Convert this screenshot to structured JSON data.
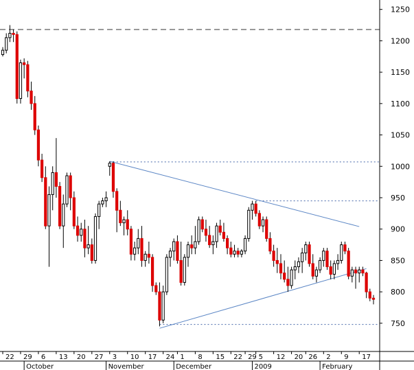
{
  "chart_data": {
    "type": "candlestick",
    "title": "",
    "xlabel": "",
    "ylabel": "",
    "ylim": [
      705,
      1265
    ],
    "y_ticks": [
      750,
      800,
      850,
      900,
      950,
      1000,
      1050,
      1100,
      1150,
      1200,
      1250
    ],
    "grid": false,
    "y_axis_position": "right",
    "colors": {
      "up": "#ffffff",
      "down": "#dd0000",
      "outline": "#000000",
      "trend": "#5b86c5",
      "guide": "#4466aa",
      "axis": "#000000"
    },
    "day_ticks": [
      {
        "label": "22",
        "i": 0
      },
      {
        "label": "29",
        "i": 5
      },
      {
        "label": "6",
        "i": 10
      },
      {
        "label": "13",
        "i": 15
      },
      {
        "label": "20",
        "i": 20
      },
      {
        "label": "27",
        "i": 25
      },
      {
        "label": "3",
        "i": 30
      },
      {
        "label": "10",
        "i": 35
      },
      {
        "label": "17",
        "i": 40
      },
      {
        "label": "24",
        "i": 45
      },
      {
        "label": "1",
        "i": 49
      },
      {
        "label": "8",
        "i": 54
      },
      {
        "label": "15",
        "i": 59
      },
      {
        "label": "22",
        "i": 64
      },
      {
        "label": "29",
        "i": 68
      },
      {
        "label": "5",
        "i": 71
      },
      {
        "label": "12",
        "i": 76
      },
      {
        "label": "20",
        "i": 81
      },
      {
        "label": "26",
        "i": 85
      },
      {
        "label": "2",
        "i": 90
      },
      {
        "label": "9",
        "i": 95
      },
      {
        "label": "17",
        "i": 100
      }
    ],
    "month_ticks": [
      {
        "label": "October",
        "i": 6
      },
      {
        "label": "November",
        "i": 29
      },
      {
        "label": "December",
        "i": 48
      },
      {
        "label": "2009",
        "i": 70
      },
      {
        "label": "February",
        "i": 89
      }
    ],
    "candles": [
      [
        1178,
        1190,
        1175,
        1185
      ],
      [
        1185,
        1212,
        1180,
        1205
      ],
      [
        1205,
        1225,
        1198,
        1212
      ],
      [
        1212,
        1218,
        1198,
        1210
      ],
      [
        1210,
        1215,
        1100,
        1108
      ],
      [
        1108,
        1170,
        1100,
        1165
      ],
      [
        1165,
        1172,
        1140,
        1162
      ],
      [
        1162,
        1168,
        1110,
        1120
      ],
      [
        1120,
        1135,
        1090,
        1100
      ],
      [
        1100,
        1112,
        1050,
        1058
      ],
      [
        1058,
        1065,
        1000,
        1010
      ],
      [
        1010,
        1020,
        975,
        982
      ],
      [
        982,
        1000,
        900,
        905
      ],
      [
        905,
        968,
        840,
        955
      ],
      [
        955,
        1000,
        930,
        990
      ],
      [
        990,
        1045,
        950,
        968
      ],
      [
        968,
        975,
        900,
        905
      ],
      [
        905,
        955,
        870,
        940
      ],
      [
        940,
        990,
        935,
        985
      ],
      [
        985,
        990,
        930,
        950
      ],
      [
        950,
        960,
        900,
        905
      ],
      [
        905,
        920,
        880,
        890
      ],
      [
        890,
        910,
        880,
        900
      ],
      [
        900,
        915,
        855,
        870
      ],
      [
        870,
        905,
        860,
        875
      ],
      [
        875,
        885,
        845,
        850
      ],
      [
        850,
        925,
        845,
        920
      ],
      [
        920,
        945,
        900,
        940
      ],
      [
        940,
        950,
        935,
        945
      ],
      [
        945,
        960,
        935,
        950
      ],
      [
        1000,
        1008,
        985,
        1005
      ],
      [
        1005,
        1008,
        950,
        960
      ],
      [
        960,
        965,
        895,
        930
      ],
      [
        930,
        945,
        905,
        910
      ],
      [
        910,
        920,
        890,
        915
      ],
      [
        915,
        930,
        890,
        900
      ],
      [
        900,
        905,
        850,
        860
      ],
      [
        860,
        880,
        850,
        870
      ],
      [
        870,
        900,
        860,
        885
      ],
      [
        885,
        905,
        840,
        850
      ],
      [
        850,
        865,
        840,
        860
      ],
      [
        860,
        880,
        845,
        855
      ],
      [
        855,
        860,
        800,
        810
      ],
      [
        810,
        815,
        795,
        800
      ],
      [
        800,
        815,
        745,
        755
      ],
      [
        755,
        810,
        750,
        800
      ],
      [
        800,
        860,
        795,
        855
      ],
      [
        855,
        870,
        840,
        865
      ],
      [
        865,
        885,
        850,
        880
      ],
      [
        880,
        890,
        845,
        850
      ],
      [
        850,
        880,
        810,
        815
      ],
      [
        815,
        860,
        810,
        855
      ],
      [
        855,
        880,
        840,
        875
      ],
      [
        875,
        890,
        860,
        870
      ],
      [
        870,
        905,
        860,
        880
      ],
      [
        880,
        920,
        875,
        915
      ],
      [
        915,
        920,
        895,
        900
      ],
      [
        900,
        915,
        880,
        890
      ],
      [
        890,
        905,
        870,
        875
      ],
      [
        875,
        890,
        860,
        880
      ],
      [
        880,
        910,
        870,
        905
      ],
      [
        905,
        915,
        890,
        895
      ],
      [
        895,
        910,
        880,
        885
      ],
      [
        885,
        890,
        860,
        870
      ],
      [
        870,
        880,
        855,
        860
      ],
      [
        860,
        875,
        855,
        865
      ],
      [
        865,
        870,
        855,
        860
      ],
      [
        860,
        868,
        855,
        865
      ],
      [
        865,
        890,
        860,
        885
      ],
      [
        885,
        935,
        880,
        930
      ],
      [
        930,
        945,
        915,
        940
      ],
      [
        940,
        945,
        920,
        925
      ],
      [
        925,
        930,
        900,
        905
      ],
      [
        905,
        920,
        895,
        915
      ],
      [
        915,
        920,
        880,
        885
      ],
      [
        885,
        895,
        860,
        865
      ],
      [
        865,
        875,
        840,
        850
      ],
      [
        850,
        870,
        830,
        845
      ],
      [
        845,
        860,
        820,
        830
      ],
      [
        830,
        850,
        815,
        820
      ],
      [
        820,
        840,
        800,
        810
      ],
      [
        810,
        840,
        805,
        835
      ],
      [
        835,
        850,
        820,
        840
      ],
      [
        840,
        855,
        830,
        848
      ],
      [
        848,
        870,
        830,
        862
      ],
      [
        862,
        880,
        850,
        875
      ],
      [
        875,
        880,
        840,
        845
      ],
      [
        845,
        860,
        820,
        825
      ],
      [
        825,
        840,
        815,
        835
      ],
      [
        835,
        855,
        830,
        850
      ],
      [
        850,
        870,
        840,
        865
      ],
      [
        865,
        870,
        835,
        840
      ],
      [
        840,
        850,
        820,
        828
      ],
      [
        828,
        850,
        820,
        845
      ],
      [
        845,
        860,
        835,
        850
      ],
      [
        850,
        880,
        845,
        875
      ],
      [
        875,
        880,
        860,
        865
      ],
      [
        865,
        870,
        820,
        825
      ],
      [
        825,
        840,
        815,
        835
      ],
      [
        835,
        840,
        805,
        830
      ],
      [
        830,
        840,
        815,
        835
      ],
      [
        835,
        840,
        825,
        830
      ],
      [
        830,
        832,
        790,
        800
      ],
      [
        800,
        805,
        785,
        790
      ],
      [
        790,
        795,
        780,
        788
      ]
    ],
    "trendlines": [
      {
        "from": [
          30,
          1008
        ],
        "to": [
          100,
          904
        ]
      },
      {
        "from": [
          44,
          742
        ],
        "to": [
          102,
          837
        ]
      }
    ],
    "guides": [
      {
        "y": 1218,
        "style": "long-dash"
      },
      {
        "y": 1007,
        "from_i": 30,
        "style": "dotted"
      },
      {
        "y": 945,
        "from_i": 71,
        "style": "dotted"
      },
      {
        "y": 748,
        "from_i": 44,
        "style": "dotted"
      }
    ]
  }
}
